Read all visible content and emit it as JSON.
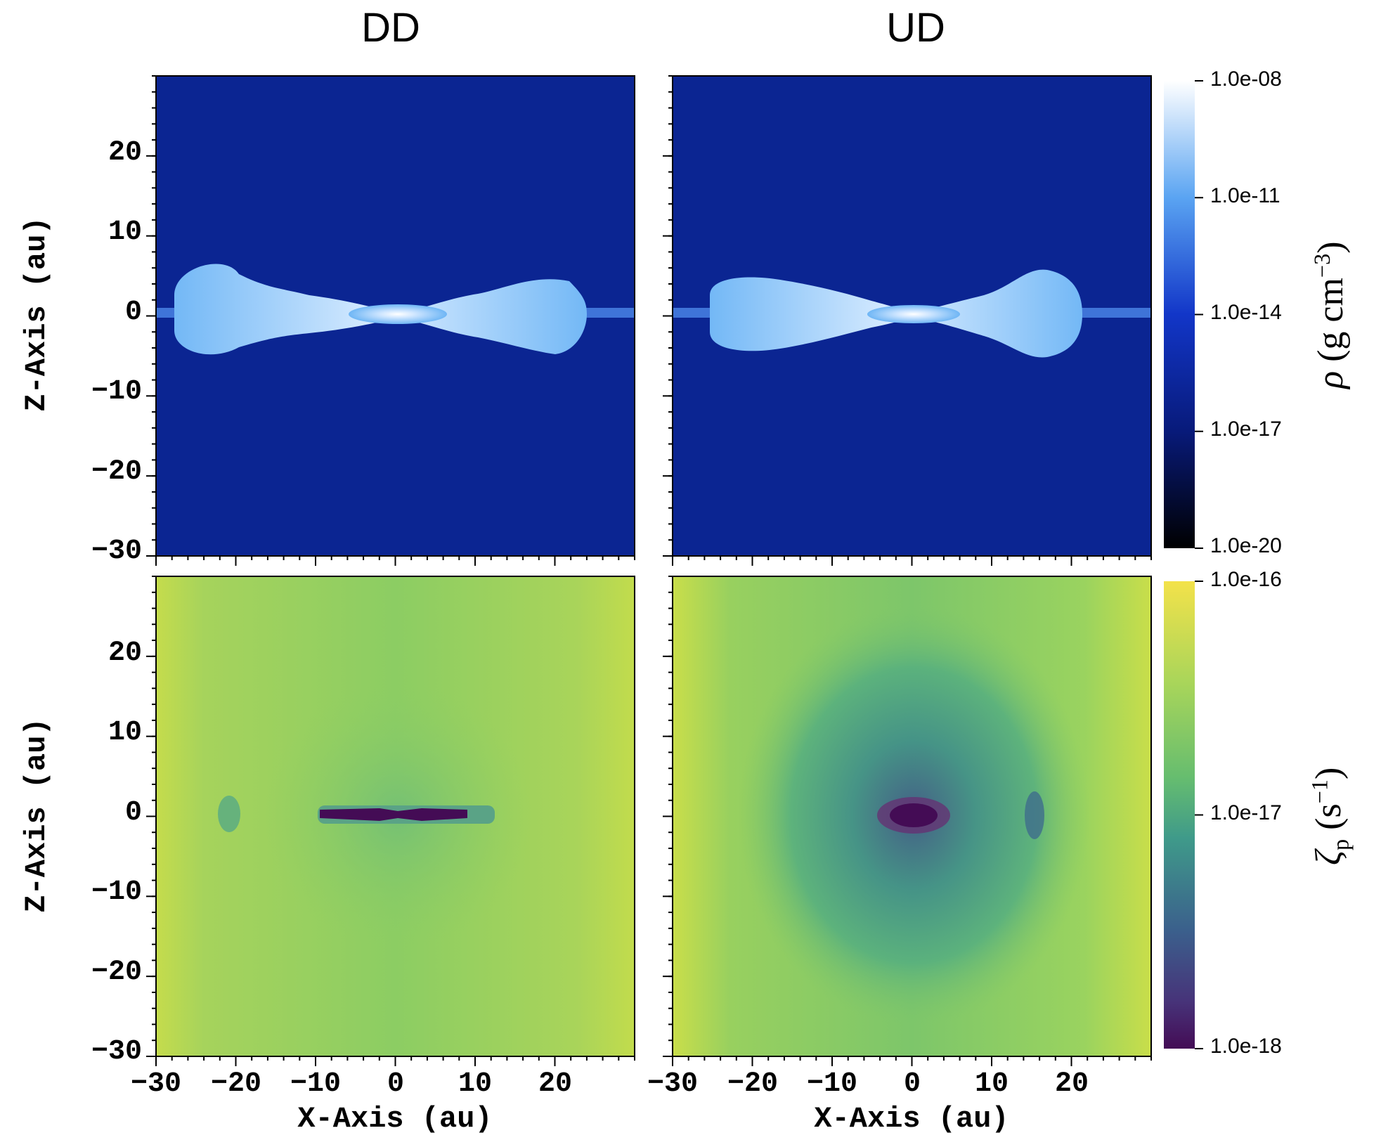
{
  "chart_data": [
    {
      "type": "heatmap",
      "panel": "top-left",
      "column_title": "DD",
      "quantity": "density",
      "xlabel": "X-Axis (au)",
      "ylabel": "Z-Axis (au)",
      "xlim": [
        -30,
        30
      ],
      "ylim": [
        -30,
        30
      ],
      "x_ticks": [
        -30,
        -20,
        -10,
        0,
        10,
        20
      ],
      "y_ticks": [
        -30,
        -20,
        -10,
        0,
        10,
        20
      ],
      "structure": "flared disk, densest at center, extends to about x = -27 and x = +23 au"
    },
    {
      "type": "heatmap",
      "panel": "top-right",
      "column_title": "UD",
      "quantity": "density",
      "xlabel": "X-Axis (au)",
      "ylabel": "Z-Axis (au)",
      "xlim": [
        -30,
        30
      ],
      "ylim": [
        -30,
        30
      ],
      "x_ticks": [
        -30,
        -20,
        -10,
        0,
        10,
        20
      ],
      "y_ticks": [
        -30,
        -20,
        -10,
        0,
        10,
        20
      ],
      "structure": "flared disk, densest at center, extends to about x = -25 and x = +21 au"
    },
    {
      "type": "heatmap",
      "panel": "bottom-left",
      "column_title": "DD",
      "quantity": "ionization rate",
      "xlabel": "X-Axis (au)",
      "ylabel": "Z-Axis (au)",
      "xlim": [
        -30,
        30
      ],
      "ylim": [
        -30,
        30
      ],
      "x_ticks": [
        -30,
        -20,
        -10,
        0,
        10,
        20
      ],
      "y_ticks": [
        -30,
        -20,
        -10,
        0,
        10,
        20
      ],
      "structure": "thin low-ionization band from x = -9 to 9 au along the midplane"
    },
    {
      "type": "heatmap",
      "panel": "bottom-right",
      "column_title": "UD",
      "quantity": "ionization rate",
      "xlabel": "X-Axis (au)",
      "ylabel": "Z-Axis (au)",
      "xlim": [
        -30,
        30
      ],
      "ylim": [
        -30,
        30
      ],
      "x_ticks": [
        -30,
        -20,
        -10,
        0,
        10,
        20
      ],
      "y_ticks": [
        -30,
        -20,
        -10,
        0,
        10,
        20
      ],
      "structure": "compact low-ionization core at the center surrounded by a broad depressed region"
    }
  ],
  "titles": {
    "left": "DD",
    "right": "UD"
  },
  "axes": {
    "xlabel": "X-Axis (au)",
    "ylabel": "Z-Axis (au)",
    "y_tick_labels": [
      "20",
      "10",
      "0",
      "−10",
      "−20",
      "−30"
    ],
    "x_tick_labels": [
      "−30",
      "−20",
      "−10",
      "0",
      "10",
      "20"
    ]
  },
  "colorbars": {
    "density": {
      "labels": [
        "1.0e-08",
        "1.0e-11",
        "1.0e-14",
        "1.0e-17",
        "1.0e-20"
      ],
      "title_symbol": "ρ",
      "title_units": "(g cm",
      "title_exp": "−3",
      "title_close": ")",
      "colors": [
        "#ffffff",
        "#5aa4f2",
        "#0c2ab8",
        "#000000"
      ]
    },
    "ionization": {
      "labels": [
        "1.0e-16",
        "1.0e-17",
        "1.0e-18"
      ],
      "title_symbol": "ζ",
      "title_sub": "p",
      "title_units": "(s",
      "title_exp": "−1",
      "title_close": ")",
      "colors": [
        "#f2e24a",
        "#6fc76b",
        "#3a8f8c",
        "#3b3f85",
        "#440c55"
      ]
    }
  }
}
